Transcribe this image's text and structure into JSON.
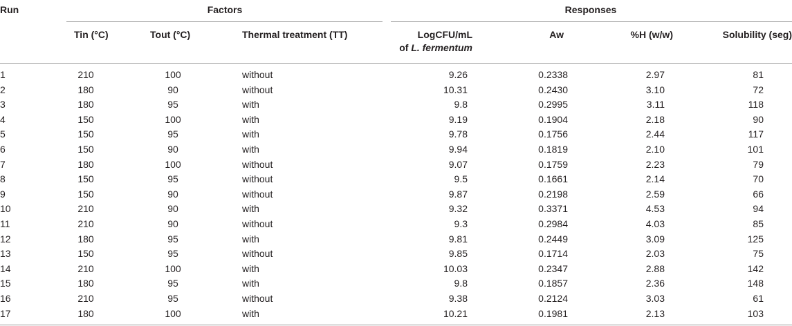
{
  "headers": {
    "run": "Run",
    "factors": "Factors",
    "responses": "Responses",
    "tin": "Tin (°C)",
    "tout": "Tout (°C)",
    "tt": "Thermal treatment (TT)",
    "log_line1": "LogCFU/mL",
    "log_line2_prefix": "of ",
    "log_line2_species": "L. fermentum",
    "aw": "Aw",
    "h": "%H (w/w)",
    "solubility": "Solubility (seg)"
  },
  "rows": [
    [
      "1",
      "210",
      "100",
      "without",
      "9.26",
      "0.2338",
      "2.97",
      "81"
    ],
    [
      "2",
      "180",
      "90",
      "without",
      "10.31",
      "0.2430",
      "3.10",
      "72"
    ],
    [
      "3",
      "180",
      "95",
      "with",
      "9.8",
      "0.2995",
      "3.11",
      "118"
    ],
    [
      "4",
      "150",
      "100",
      "with",
      "9.19",
      "0.1904",
      "2.18",
      "90"
    ],
    [
      "5",
      "150",
      "95",
      "with",
      "9.78",
      "0.1756",
      "2.44",
      "117"
    ],
    [
      "6",
      "150",
      "90",
      "with",
      "9.94",
      "0.1819",
      "2.10",
      "101"
    ],
    [
      "7",
      "180",
      "100",
      "without",
      "9.07",
      "0.1759",
      "2.23",
      "79"
    ],
    [
      "8",
      "150",
      "95",
      "without",
      "9.5",
      "0.1661",
      "2.14",
      "70"
    ],
    [
      "9",
      "150",
      "90",
      "without",
      "9.87",
      "0.2198",
      "2.59",
      "66"
    ],
    [
      "10",
      "210",
      "90",
      "with",
      "9.32",
      "0.3371",
      "4.53",
      "94"
    ],
    [
      "11",
      "210",
      "90",
      "without",
      "9.3",
      "0.2984",
      "4.03",
      "85"
    ],
    [
      "12",
      "180",
      "95",
      "with",
      "9.81",
      "0.2449",
      "3.09",
      "125"
    ],
    [
      "13",
      "150",
      "95",
      "without",
      "9.85",
      "0.1714",
      "2.03",
      "75"
    ],
    [
      "14",
      "210",
      "100",
      "with",
      "10.03",
      "0.2347",
      "2.88",
      "142"
    ],
    [
      "15",
      "180",
      "95",
      "with",
      "9.8",
      "0.1857",
      "2.36",
      "148"
    ],
    [
      "16",
      "210",
      "95",
      "without",
      "9.38",
      "0.2124",
      "3.03",
      "61"
    ],
    [
      "17",
      "180",
      "100",
      "with",
      "10.21",
      "0.1981",
      "2.13",
      "103"
    ]
  ]
}
